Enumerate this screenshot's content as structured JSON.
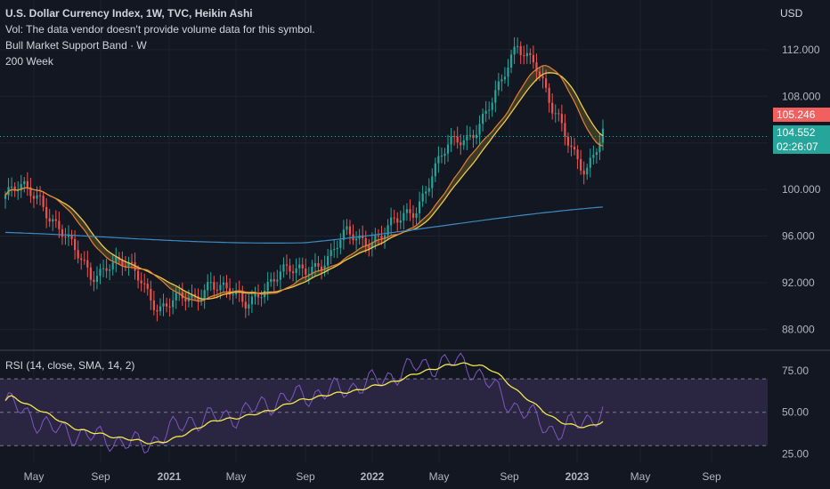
{
  "header": {
    "title": "U.S. Dollar Currency Index, 1W, TVC, Heikin Ashi",
    "vol_note": "Vol: The data vendor doesn't provide volume data for this symbol.",
    "indicator1": "Bull Market Support Band · W",
    "indicator2": "200 Week"
  },
  "price_axis": {
    "currency": "USD",
    "ticks": [
      "112.000",
      "108.000",
      "104.000",
      "100.000",
      "96.000",
      "92.000",
      "88.000"
    ]
  },
  "badges": {
    "sma": "105.246",
    "last": "104.552",
    "countdown": "02:26:07"
  },
  "rsi": {
    "label": "RSI (14, close, SMA, 14, 2)",
    "ticks": [
      "75.00",
      "50.00",
      "25.00"
    ]
  },
  "time_axis": [
    "May",
    "Sep",
    "2021",
    "May",
    "Sep",
    "2022",
    "May",
    "Sep",
    "2023",
    "May",
    "Sep"
  ],
  "colors": {
    "background": "#131722",
    "up": "#26a69a",
    "down": "#ef5350",
    "sma_band": "#f0c94c",
    "ema_band": "#e57f35",
    "ma200": "#3c8ac4",
    "rsi_line": "#7e57c2",
    "rsi_ma": "#f2e94e",
    "rsi_band": "#2a2540"
  },
  "chart_data": {
    "type": "candlestick",
    "title": "U.S. Dollar Currency Index, 1W, TVC, Heikin Ashi",
    "y_axis": {
      "label": "USD",
      "range": [
        86.5,
        115.5
      ]
    },
    "x_axis": {
      "labels": [
        "May",
        "Sep",
        "2021",
        "May",
        "Sep",
        "2022",
        "May",
        "Sep",
        "2023",
        "May",
        "Sep"
      ]
    },
    "close_series": [
      {
        "date": "2020-03",
        "value": 99.5
      },
      {
        "date": "2020-04",
        "value": 99.8
      },
      {
        "date": "2020-05",
        "value": 99.6
      },
      {
        "date": "2020-06",
        "value": 97.0
      },
      {
        "date": "2020-07",
        "value": 94.5
      },
      {
        "date": "2020-08",
        "value": 92.8
      },
      {
        "date": "2020-09",
        "value": 93.8
      },
      {
        "date": "2020-10",
        "value": 93.2
      },
      {
        "date": "2020-11",
        "value": 92.3
      },
      {
        "date": "2020-12",
        "value": 90.0
      },
      {
        "date": "2021-01",
        "value": 90.2
      },
      {
        "date": "2021-02",
        "value": 90.5
      },
      {
        "date": "2021-03",
        "value": 92.5
      },
      {
        "date": "2021-04",
        "value": 91.0
      },
      {
        "date": "2021-05",
        "value": 90.0
      },
      {
        "date": "2021-06",
        "value": 91.8
      },
      {
        "date": "2021-07",
        "value": 92.5
      },
      {
        "date": "2021-08",
        "value": 92.8
      },
      {
        "date": "2021-09",
        "value": 93.8
      },
      {
        "date": "2021-10",
        "value": 94.0
      },
      {
        "date": "2021-11",
        "value": 96.0
      },
      {
        "date": "2021-12",
        "value": 96.0
      },
      {
        "date": "2022-01",
        "value": 96.0
      },
      {
        "date": "2022-02",
        "value": 97.0
      },
      {
        "date": "2022-03",
        "value": 98.5
      },
      {
        "date": "2022-04",
        "value": 101.5
      },
      {
        "date": "2022-05",
        "value": 103.5
      },
      {
        "date": "2022-06",
        "value": 104.5
      },
      {
        "date": "2022-07",
        "value": 106.5
      },
      {
        "date": "2022-08",
        "value": 108.5
      },
      {
        "date": "2022-09",
        "value": 112.5
      },
      {
        "date": "2022-10",
        "value": 111.5
      },
      {
        "date": "2022-11",
        "value": 106.5
      },
      {
        "date": "2022-12",
        "value": 104.0
      },
      {
        "date": "2023-01",
        "value": 102.0
      },
      {
        "date": "2023-02",
        "value": 104.5
      }
    ],
    "series": [
      {
        "name": "Bull Market Support Band · W",
        "values_at_end": 105.246
      },
      {
        "name": "200 Week",
        "range": [
          95.6,
          97.8
        ]
      }
    ],
    "last_price": 104.552,
    "rsi": {
      "name": "RSI (14, close, SMA, 14, 2)",
      "ylim": [
        20,
        85
      ],
      "bands": [
        70,
        50,
        30
      ],
      "approx_values": [
        {
          "date": "2020-03",
          "value": 57
        },
        {
          "date": "2020-06",
          "value": 40
        },
        {
          "date": "2020-09",
          "value": 35
        },
        {
          "date": "2020-12",
          "value": 30
        },
        {
          "date": "2021-03",
          "value": 45
        },
        {
          "date": "2021-06",
          "value": 48
        },
        {
          "date": "2021-09",
          "value": 58
        },
        {
          "date": "2021-12",
          "value": 62
        },
        {
          "date": "2022-03",
          "value": 68
        },
        {
          "date": "2022-06",
          "value": 78
        },
        {
          "date": "2022-09",
          "value": 80
        },
        {
          "date": "2022-11",
          "value": 55
        },
        {
          "date": "2023-01",
          "value": 38
        },
        {
          "date": "2023-02",
          "value": 50
        }
      ]
    }
  }
}
